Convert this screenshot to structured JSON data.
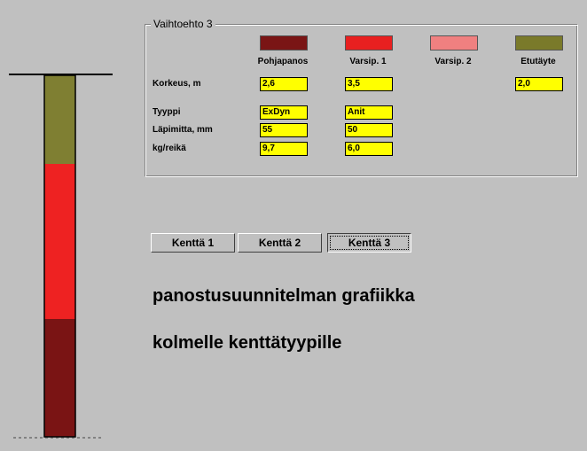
{
  "group_title": "Vaihtoehto 3",
  "row_labels": {
    "korkeus": "Korkeus, m",
    "tyyppi": "Tyyppi",
    "lapimitta": "Läpimitta, mm",
    "kg": "kg/reikä"
  },
  "columns": [
    {
      "name": "Pohjapanos",
      "korkeus": "2,6",
      "tyyppi": "ExDyn",
      "lapimitta": "55",
      "kg": "9,7"
    },
    {
      "name": "Varsip. 1",
      "korkeus": "3,5",
      "tyyppi": "Anit",
      "lapimitta": "50",
      "kg": "6,0"
    },
    {
      "name": "Varsip. 2"
    },
    {
      "name": "Etutäyte",
      "korkeus": "2,0"
    }
  ],
  "buttons": [
    "Kenttä 1",
    "Kenttä 2",
    "Kenttä 3"
  ],
  "caption": [
    "panostusuunnitelman grafiikka",
    "kolmelle kenttätyypille"
  ]
}
